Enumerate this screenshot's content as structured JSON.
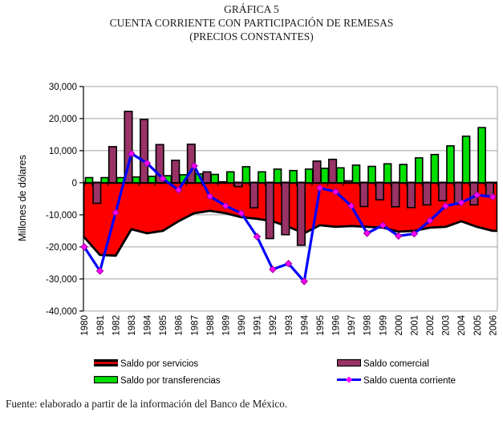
{
  "title": {
    "line1": "GRÁFICA 5",
    "line2": "CUENTA CORRIENTE CON PARTICIPACIÓN DE REMESAS",
    "line3": "(PRECIOS CONSTANTES)"
  },
  "footer": "Fuente: elaborado a partir de la información del Banco de México.",
  "chart_data": {
    "type": "combo-area-bar-line",
    "title": "CUENTA CORRIENTE CON PARTICIPACIÓN DE REMESAS (PRECIOS CONSTANTES)",
    "ylabel": "Millones de dólares",
    "ylim": [
      -40000,
      30000
    ],
    "grid": true,
    "legend_position": "bottom",
    "ytick_values": [
      30000,
      20000,
      10000,
      0,
      -10000,
      -20000,
      -30000,
      -40000
    ],
    "ytick_labels": [
      "30,000",
      "20,000",
      "10,000",
      "0",
      "-10,000",
      "-20,000",
      "-30,000",
      "-40,000"
    ],
    "categories": [
      "1980",
      "1981",
      "1982",
      "1983",
      "1984",
      "1985",
      "1986",
      "1987",
      "1988",
      "1989",
      "1990",
      "1991",
      "1992",
      "1993",
      "1994",
      "1995",
      "1996",
      "1997",
      "1998",
      "1999",
      "2000",
      "2001",
      "2002",
      "2003",
      "2004",
      "2005",
      "2006"
    ],
    "series": [
      {
        "name": "Saldo por servicios",
        "type": "area",
        "color": "#ff0000",
        "border_color": "#000000",
        "values": [
          -17000,
          -22500,
          -22750,
          -14500,
          -15750,
          -15000,
          -12000,
          -9500,
          -8750,
          -9500,
          -10750,
          -11250,
          -12000,
          -13750,
          -15750,
          -13250,
          -13750,
          -13500,
          -13750,
          -14000,
          -15250,
          -15000,
          -14000,
          -13750,
          -12000,
          -13750,
          -15000
        ]
      },
      {
        "name": "Saldo comercial",
        "type": "bar",
        "color": "#993366",
        "border_color": "#000000",
        "values": [
          -400,
          -6400,
          11250,
          22250,
          19750,
          11900,
          7000,
          12000,
          3400,
          300,
          -1200,
          -7800,
          -17400,
          -16200,
          -19500,
          6750,
          7300,
          600,
          -7400,
          -5300,
          -7500,
          -7750,
          -6900,
          -5600,
          -6750,
          -6900,
          -4250
        ]
      },
      {
        "name": "Saldo por transferencias",
        "type": "bar",
        "color": "#00e000",
        "border_color": "#000000",
        "values": [
          1600,
          1600,
          1600,
          1800,
          2000,
          2200,
          2500,
          2750,
          2600,
          3400,
          5000,
          3400,
          4250,
          3800,
          4250,
          4500,
          4650,
          5500,
          5100,
          5900,
          5700,
          7750,
          8800,
          11500,
          14500,
          17200,
          null
        ]
      },
      {
        "name": "Saldo cuenta corriente",
        "type": "line",
        "color": "#0000ff",
        "marker_color": "#ff00ff",
        "marker_border": "#990099",
        "values": [
          -20000,
          -27500,
          -9300,
          9100,
          6100,
          1300,
          -2250,
          5250,
          -4250,
          -7200,
          -9500,
          -16800,
          -27000,
          -25200,
          -30750,
          -1600,
          -2800,
          -7250,
          -15750,
          -13250,
          -16600,
          -15900,
          -11800,
          -7250,
          -6200,
          -3800,
          -4400
        ]
      }
    ],
    "grid_color": "#a0a0a0",
    "axis_color": "#000000"
  }
}
